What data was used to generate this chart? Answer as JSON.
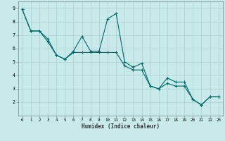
{
  "title": "",
  "xlabel": "Humidex (Indice chaleur)",
  "ylabel": "",
  "bg_color": "#c8eaea",
  "plot_bg_color": "#c8eaea",
  "grid_color": "#a8d0d0",
  "line_color": "#006868",
  "xlim": [
    -0.5,
    23.5
  ],
  "ylim": [
    1.0,
    9.5
  ],
  "yticks": [
    2,
    3,
    4,
    5,
    6,
    7,
    8,
    9
  ],
  "xticks": [
    0,
    1,
    2,
    3,
    4,
    5,
    6,
    7,
    8,
    9,
    10,
    11,
    12,
    13,
    14,
    15,
    16,
    17,
    18,
    19,
    20,
    21,
    22,
    23
  ],
  "series1_x": [
    0,
    1,
    2,
    3,
    4,
    5,
    6,
    7,
    8,
    9,
    10,
    11,
    12,
    13,
    14,
    15,
    16,
    17,
    18,
    19,
    20,
    21,
    22,
    23
  ],
  "series1_y": [
    8.9,
    7.3,
    7.3,
    6.7,
    5.5,
    5.2,
    5.8,
    6.9,
    5.8,
    5.8,
    8.2,
    8.6,
    5.0,
    4.6,
    4.9,
    3.2,
    3.0,
    3.8,
    3.5,
    3.5,
    2.2,
    1.8,
    2.4,
    2.4
  ],
  "series2_x": [
    0,
    1,
    2,
    3,
    4,
    5,
    6,
    7,
    8,
    9,
    10,
    11,
    12,
    13,
    14,
    15,
    16,
    17,
    18,
    19,
    20,
    21,
    22,
    23
  ],
  "series2_y": [
    8.9,
    7.3,
    7.3,
    6.5,
    5.5,
    5.2,
    5.7,
    5.7,
    5.7,
    5.7,
    5.7,
    5.7,
    4.7,
    4.4,
    4.4,
    3.2,
    3.0,
    3.4,
    3.2,
    3.2,
    2.2,
    1.8,
    2.4,
    2.4
  ]
}
